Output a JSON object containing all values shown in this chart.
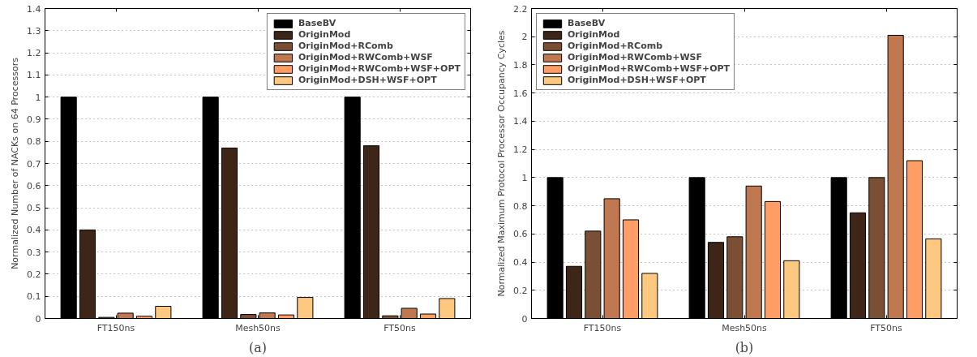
{
  "chart_data": [
    {
      "type": "bar",
      "xlabel": "(a)",
      "ylabel": "Normalized Number of NACKs on 64 Processors",
      "categories": [
        "FT150ns",
        "Mesh50ns",
        "FT50ns"
      ],
      "series": [
        {
          "name": "BaseBV",
          "color": "#000000",
          "values": [
            1,
            1,
            1
          ]
        },
        {
          "name": "OriginMod",
          "color": "#3d2618",
          "values": [
            0.4,
            0.77,
            0.78
          ]
        },
        {
          "name": "OriginMod+RComb",
          "color": "#7a4f33",
          "values": [
            0.005,
            0.018,
            0.012
          ]
        },
        {
          "name": "OriginMod+RWComb+WSF",
          "color": "#c07850",
          "values": [
            0.024,
            0.025,
            0.046
          ]
        },
        {
          "name": "OriginMod+RWComb+WSF+OPT",
          "color": "#ff9e64",
          "values": [
            0.01,
            0.016,
            0.02
          ]
        },
        {
          "name": "OriginMod+DSH+WSF+OPT",
          "color": "#ffc880",
          "values": [
            0.055,
            0.095,
            0.09
          ]
        }
      ],
      "ylim": [
        0,
        1.4
      ],
      "yticks": [
        0,
        0.1,
        0.2,
        0.3,
        0.4,
        0.5,
        0.6,
        0.7,
        0.8,
        0.9,
        1,
        1.1,
        1.2,
        1.3,
        1.4
      ],
      "grid": "y",
      "legend": "top right"
    },
    {
      "type": "bar",
      "xlabel": "(b)",
      "ylabel": "Normalized Maximum Protocol Processor Occupancy Cycles",
      "categories": [
        "FT150ns",
        "Mesh50ns",
        "FT50ns"
      ],
      "series": [
        {
          "name": "BaseBV",
          "color": "#000000",
          "values": [
            1,
            1,
            1
          ]
        },
        {
          "name": "OriginMod",
          "color": "#3d2618",
          "values": [
            0.37,
            0.54,
            0.75
          ]
        },
        {
          "name": "OriginMod+RComb",
          "color": "#7a4f33",
          "values": [
            0.62,
            0.58,
            1.0
          ]
        },
        {
          "name": "OriginMod+RWComb+WSF",
          "color": "#c07850",
          "values": [
            0.85,
            0.94,
            2.01
          ]
        },
        {
          "name": "OriginMod+RWComb+WSF+OPT",
          "color": "#ff9e64",
          "values": [
            0.7,
            0.83,
            1.12
          ]
        },
        {
          "name": "OriginMod+DSH+WSF+OPT",
          "color": "#ffc880",
          "values": [
            0.32,
            0.41,
            0.565
          ]
        }
      ],
      "ylim": [
        0,
        2.2
      ],
      "yticks": [
        0,
        0.2,
        0.4,
        0.6,
        0.8,
        1,
        1.2,
        1.4,
        1.6,
        1.8,
        2,
        2.2
      ],
      "grid": "y",
      "legend": "top left"
    }
  ]
}
